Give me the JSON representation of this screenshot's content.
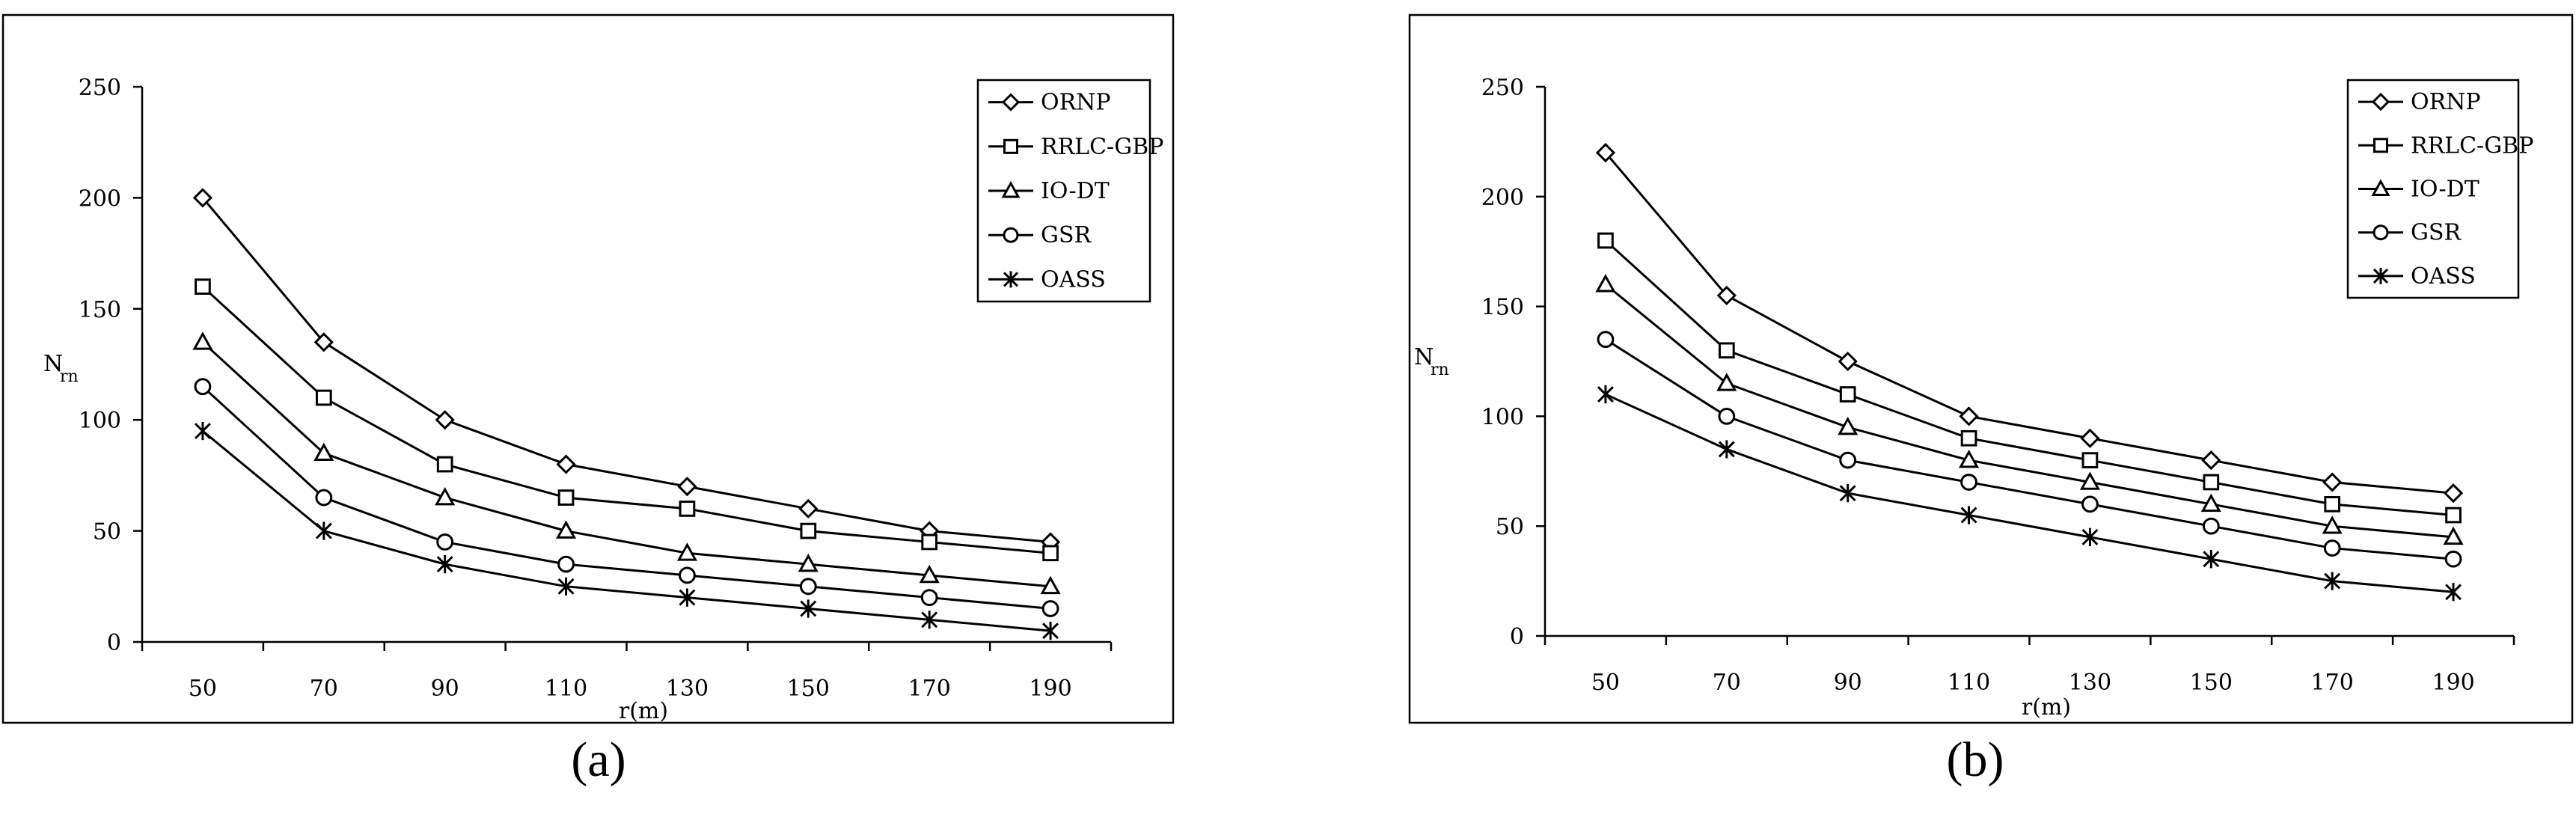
{
  "chart_data": [
    {
      "type": "line",
      "panel_label": "(a)",
      "xlabel": "r(m)",
      "ylabel": "N",
      "ylabel_sub": "rn",
      "categories": [
        "50",
        "70",
        "90",
        "110",
        "130",
        "150",
        "170",
        "190"
      ],
      "x": [
        50,
        70,
        90,
        110,
        130,
        150,
        170,
        190
      ],
      "ylim": [
        0,
        250
      ],
      "yticks": [
        "0",
        "50",
        "100",
        "150",
        "200",
        "250"
      ],
      "legend_position": "top-right",
      "grid": false,
      "series": [
        {
          "name": "ORNP",
          "marker": "diamond",
          "values": [
            200,
            135,
            100,
            80,
            70,
            60,
            50,
            45
          ]
        },
        {
          "name": "RRLC-GBP",
          "marker": "square",
          "values": [
            160,
            110,
            80,
            65,
            60,
            50,
            45,
            40
          ]
        },
        {
          "name": "IO-DT",
          "marker": "triangle",
          "values": [
            135,
            85,
            65,
            50,
            40,
            35,
            30,
            25
          ]
        },
        {
          "name": "GSR",
          "marker": "circle",
          "values": [
            115,
            65,
            45,
            35,
            30,
            25,
            20,
            15
          ]
        },
        {
          "name": "OASS",
          "marker": "asterisk",
          "values": [
            95,
            50,
            35,
            25,
            20,
            15,
            10,
            5
          ]
        }
      ]
    },
    {
      "type": "line",
      "panel_label": "(b)",
      "xlabel": "r(m)",
      "ylabel": "N",
      "ylabel_sub": "rn",
      "categories": [
        "50",
        "70",
        "90",
        "110",
        "130",
        "150",
        "170",
        "190"
      ],
      "x": [
        50,
        70,
        90,
        110,
        130,
        150,
        170,
        190
      ],
      "ylim": [
        0,
        250
      ],
      "yticks": [
        "0",
        "50",
        "100",
        "150",
        "200",
        "250"
      ],
      "legend_position": "top-right",
      "grid": false,
      "series": [
        {
          "name": "ORNP",
          "marker": "diamond",
          "values": [
            220,
            155,
            125,
            100,
            90,
            80,
            70,
            65
          ]
        },
        {
          "name": "RRLC-GBP",
          "marker": "square",
          "values": [
            180,
            130,
            110,
            90,
            80,
            70,
            60,
            55
          ]
        },
        {
          "name": "IO-DT",
          "marker": "triangle",
          "values": [
            160,
            115,
            95,
            80,
            70,
            60,
            50,
            45
          ]
        },
        {
          "name": "GSR",
          "marker": "circle",
          "values": [
            135,
            100,
            80,
            70,
            60,
            50,
            40,
            35
          ]
        },
        {
          "name": "OASS",
          "marker": "asterisk",
          "values": [
            110,
            85,
            65,
            55,
            45,
            35,
            25,
            20
          ]
        }
      ]
    }
  ]
}
